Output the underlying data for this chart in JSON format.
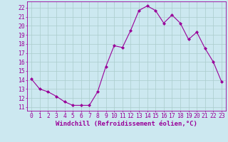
{
  "x": [
    0,
    1,
    2,
    3,
    4,
    5,
    6,
    7,
    8,
    9,
    10,
    11,
    12,
    13,
    14,
    15,
    16,
    17,
    18,
    19,
    20,
    21,
    22,
    23
  ],
  "y": [
    14.1,
    13.0,
    12.7,
    12.2,
    11.6,
    11.2,
    11.2,
    11.2,
    12.7,
    15.5,
    17.8,
    17.6,
    19.5,
    21.7,
    22.2,
    21.7,
    20.3,
    21.2,
    20.3,
    18.5,
    19.3,
    17.5,
    16.0,
    13.8
  ],
  "line_color": "#990099",
  "marker_color": "#990099",
  "bg_color": "#cce8f0",
  "grid_color": "#aacccc",
  "xlabel": "Windchill (Refroidissement éolien,°C)",
  "yticks": [
    11,
    12,
    13,
    14,
    15,
    16,
    17,
    18,
    19,
    20,
    21,
    22
  ],
  "xticks": [
    0,
    1,
    2,
    3,
    4,
    5,
    6,
    7,
    8,
    9,
    10,
    11,
    12,
    13,
    14,
    15,
    16,
    17,
    18,
    19,
    20,
    21,
    22,
    23
  ],
  "ylim": [
    10.6,
    22.7
  ],
  "xlim": [
    -0.5,
    23.5
  ],
  "xlabel_fontsize": 6.5,
  "tick_fontsize": 5.8
}
